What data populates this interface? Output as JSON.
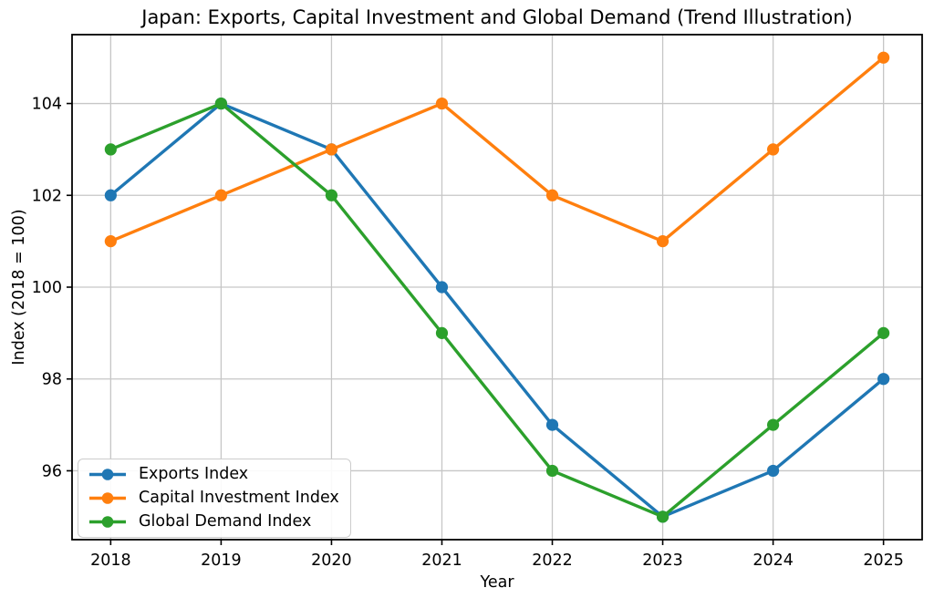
{
  "figure": {
    "background": "#ffffff",
    "axis_color": "#000000",
    "grid_color": "#c6c6c6",
    "tick_label_color": "#000000"
  },
  "chart_data": {
    "type": "line",
    "title": "Japan: Exports, Capital Investment and Global Demand (Trend Illustration)",
    "xlabel": "Year",
    "ylabel": "Index (2018 = 100)",
    "x": [
      2018,
      2019,
      2020,
      2021,
      2022,
      2023,
      2024,
      2025
    ],
    "xticks": [
      2018,
      2019,
      2020,
      2021,
      2022,
      2023,
      2024,
      2025
    ],
    "yticks": [
      96,
      98,
      100,
      102,
      104
    ],
    "xlim": [
      2017.65,
      2025.35
    ],
    "ylim": [
      94.5,
      105.5
    ],
    "grid": true,
    "legend": {
      "position": "lower left",
      "border_color": "#cccccc",
      "background": "#ffffff",
      "entries": [
        "Exports Index",
        "Capital Investment Index",
        "Global Demand Index"
      ]
    },
    "series": [
      {
        "name": "Exports Index",
        "color": "#1f77b4",
        "marker": "circle",
        "values": [
          102,
          104,
          103,
          100,
          97,
          95,
          96,
          98
        ]
      },
      {
        "name": "Capital Investment Index",
        "color": "#ff7f0e",
        "marker": "circle",
        "values": [
          101,
          102,
          103,
          104,
          102,
          101,
          103,
          105
        ]
      },
      {
        "name": "Global Demand Index",
        "color": "#2ca02c",
        "marker": "circle",
        "values": [
          103,
          104,
          102,
          99,
          96,
          95,
          97,
          99
        ]
      }
    ]
  }
}
